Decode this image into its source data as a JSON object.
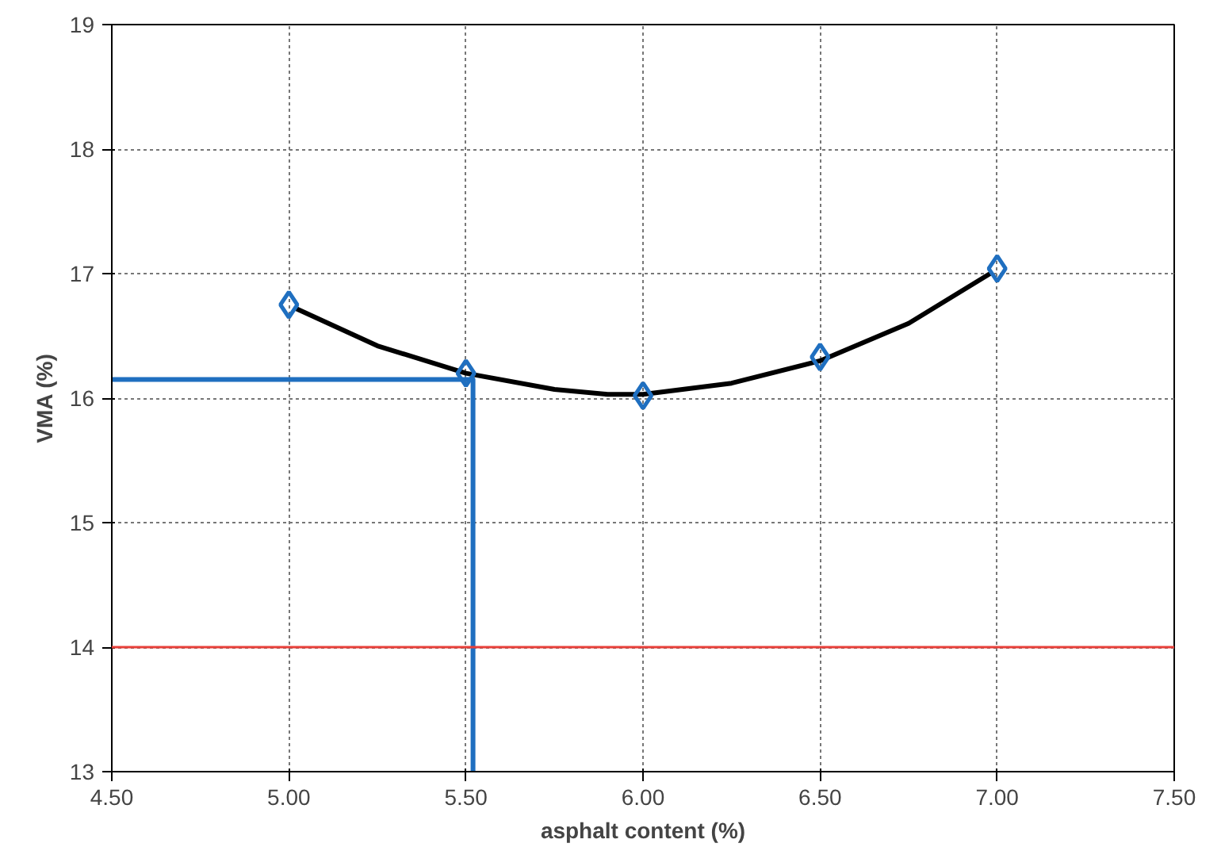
{
  "chart_data": {
    "type": "scatter",
    "xlabel": "asphalt content (%)",
    "ylabel": "VMA (%)",
    "xlim": [
      4.5,
      7.5
    ],
    "xticks": [
      {
        "value": 4.5,
        "label": "4.50"
      },
      {
        "value": 5.0,
        "label": "5.00"
      },
      {
        "value": 5.5,
        "label": "5.50"
      },
      {
        "value": 6.0,
        "label": "6.00"
      },
      {
        "value": 6.5,
        "label": "6.50"
      },
      {
        "value": 7.0,
        "label": "7.00"
      },
      {
        "value": 7.5,
        "label": "7.50"
      }
    ],
    "ylim": [
      13,
      19
    ],
    "yticks": [
      13,
      14,
      15,
      16,
      17,
      18,
      19
    ],
    "grid": true,
    "series": [
      {
        "marker": "diamond",
        "color": "#1f6fc0",
        "x": [
          5.0,
          5.5,
          6.0,
          6.5,
          7.0
        ],
        "values": [
          16.75,
          16.2,
          16.02,
          16.33,
          17.04
        ]
      },
      {
        "type": "line",
        "marker": "none",
        "color": "#000000",
        "x": [
          5.02,
          5.25,
          5.5,
          5.75,
          5.9,
          6.0,
          6.25,
          6.5,
          6.75,
          6.98
        ],
        "values": [
          16.72,
          16.42,
          16.2,
          16.07,
          16.03,
          16.03,
          16.12,
          16.3,
          16.6,
          17.0
        ]
      },
      {
        "type": "line",
        "marker": "none",
        "color": "#1f6fc0",
        "x": [
          4.5,
          5.52,
          5.52
        ],
        "values": [
          16.15,
          16.15,
          13
        ]
      }
    ],
    "ref_lines": [
      {
        "axis": "y",
        "value": 14,
        "label": null,
        "color": "#e8403a"
      }
    ]
  }
}
